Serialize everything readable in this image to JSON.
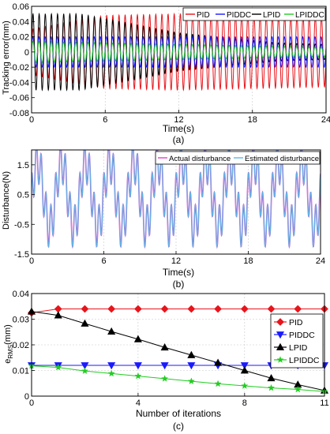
{
  "chart_data": [
    {
      "type": "line",
      "caption": "(a)",
      "xlabel": "Time(s)",
      "ylabel": "Tracking error(mm)",
      "xlim": [
        0,
        24
      ],
      "ylim": [
        -0.08,
        0.06
      ],
      "xticks": [
        0,
        6,
        12,
        18,
        24
      ],
      "yticks": [
        -0.08,
        -0.06,
        -0.04,
        -0.02,
        0,
        0.02,
        0.04,
        0.06
      ],
      "ytick_labels": [
        "-0.08",
        "-0.06",
        "-0.04",
        "-0.02",
        "0",
        "0.02",
        "0.04",
        "0.06"
      ],
      "legend_position": "top-right",
      "series": [
        {
          "name": "PID",
          "color": "#e8141b",
          "frequency_hz": 2.0,
          "amplitude": [
            [
              0,
              0.03
            ],
            [
              6,
              0.048
            ],
            [
              12,
              0.05
            ],
            [
              18,
              0.048
            ],
            [
              24,
              0.046
            ]
          ]
        },
        {
          "name": "PIDDC",
          "color": "#1a1aff",
          "frequency_hz": 2.0,
          "amplitude": [
            [
              0,
              0.02
            ],
            [
              12,
              0.02
            ],
            [
              24,
              0.02
            ]
          ]
        },
        {
          "name": "LPID",
          "color": "#000000",
          "frequency_hz": 2.0,
          "amplitude": [
            [
              0,
              0.05
            ],
            [
              4,
              0.05
            ],
            [
              12,
              0.025
            ],
            [
              20,
              0.012
            ],
            [
              24,
              0.01
            ]
          ]
        },
        {
          "name": "LPIDDC",
          "color": "#22cc22",
          "frequency_hz": 2.0,
          "amplitude": [
            [
              0,
              0.014
            ],
            [
              12,
              0.01
            ],
            [
              24,
              0.006
            ]
          ]
        }
      ]
    },
    {
      "type": "line",
      "caption": "(b)",
      "xlabel": "Time(s)",
      "ylabel": "Disturbance(N)",
      "xlim": [
        0,
        24
      ],
      "ylim": [
        -1.5,
        2
      ],
      "xticks": [
        0,
        6,
        12,
        18,
        24
      ],
      "yticks": [
        -1.5,
        -0.5,
        0.5,
        1.5
      ],
      "ytick_labels": [
        "-1.5",
        "-0.5",
        "0.5",
        "1.5"
      ],
      "legend_position": "top-right",
      "signal": "0.5 + 1.1*sin(2*pi*t/2) + 0.7*cos(2*pi*t/0.4)",
      "series": [
        {
          "name": "Actual disturbance",
          "color": "#e040c8"
        },
        {
          "name": "Estimated disturbance",
          "color": "#59b8e6"
        }
      ]
    },
    {
      "type": "line",
      "caption": "(c)",
      "xlabel": "Number of iterations",
      "ylabel_main": "e",
      "ylabel_sub": "RMS",
      "ylabel_tail": "(mm)",
      "xlim": [
        0,
        11
      ],
      "ylim": [
        0,
        0.04
      ],
      "xticks": [
        0,
        4,
        8,
        11
      ],
      "yticks": [
        0,
        0.01,
        0.02,
        0.03,
        0.04
      ],
      "ytick_labels": [
        "0",
        "0.01",
        "0.02",
        "0.03",
        "0.04"
      ],
      "grid": true,
      "legend_position": "right",
      "x": [
        0,
        1,
        2,
        3,
        4,
        5,
        6,
        7,
        8,
        9,
        10,
        11
      ],
      "series": [
        {
          "name": "PID",
          "color": "#e8141b",
          "marker": "diamond",
          "values": [
            0.0325,
            0.034,
            0.034,
            0.034,
            0.034,
            0.034,
            0.034,
            0.034,
            0.034,
            0.034,
            0.034,
            0.034
          ]
        },
        {
          "name": "PIDDC",
          "color": "#1a1aff",
          "marker": "triangle-down",
          "values": [
            0.012,
            0.012,
            0.012,
            0.012,
            0.012,
            0.012,
            0.012,
            0.012,
            0.012,
            0.012,
            0.012,
            0.012
          ]
        },
        {
          "name": "LPID",
          "color": "#000000",
          "marker": "triangle-up",
          "values": [
            0.033,
            0.0315,
            0.0283,
            0.0252,
            0.0222,
            0.019,
            0.016,
            0.013,
            0.01,
            0.007,
            0.0045,
            0.0022
          ]
        },
        {
          "name": "LPIDDC",
          "color": "#22cc22",
          "marker": "star",
          "values": [
            0.0118,
            0.0112,
            0.0098,
            0.0088,
            0.0078,
            0.0068,
            0.0058,
            0.0048,
            0.004,
            0.0032,
            0.0026,
            0.0018
          ]
        }
      ]
    }
  ]
}
